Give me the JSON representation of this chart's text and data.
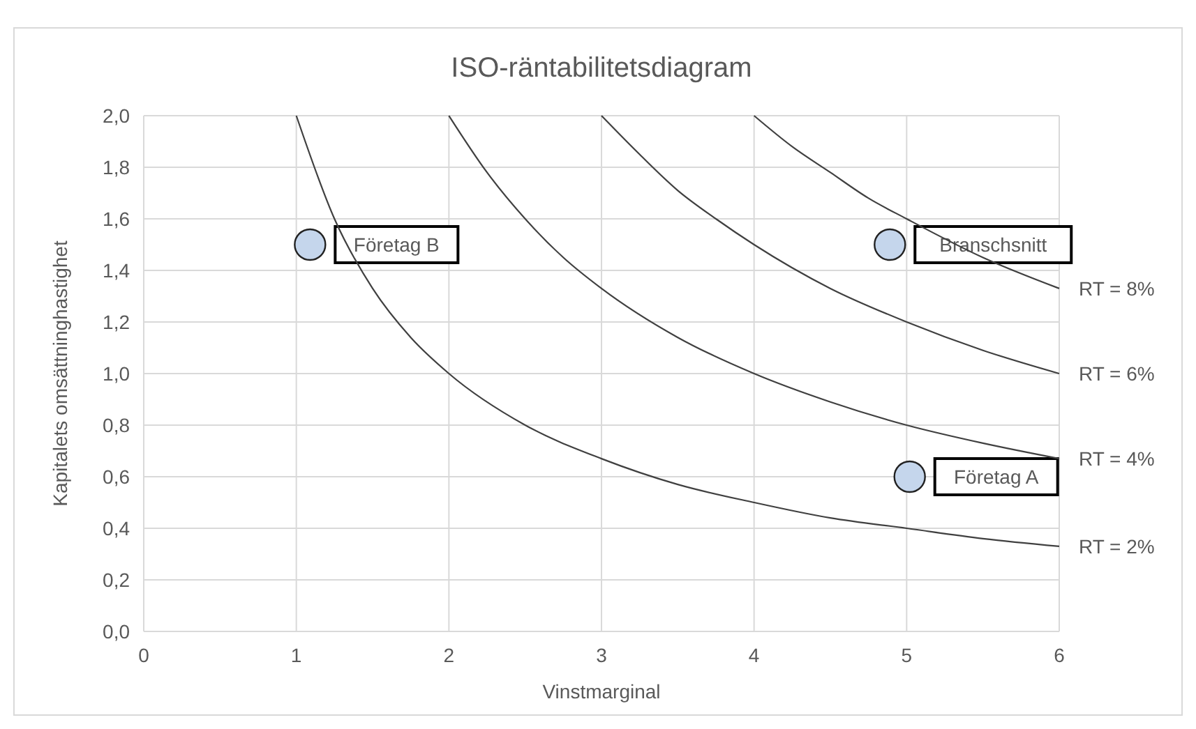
{
  "chart_data": {
    "type": "line",
    "title": "ISO-räntabilitetsdiagram",
    "xlabel": "Vinstmarginal",
    "ylabel": "Kapitalets omsättninghastighet",
    "xlim": [
      0,
      6
    ],
    "ylim": [
      0,
      2
    ],
    "xticks": [
      0,
      1,
      2,
      3,
      4,
      5,
      6
    ],
    "yticks": [
      {
        "value": 0,
        "label": "0,0"
      },
      {
        "value": 0.2,
        "label": "0,2"
      },
      {
        "value": 0.4,
        "label": "0,4"
      },
      {
        "value": 0.6,
        "label": "0,6"
      },
      {
        "value": 0.8,
        "label": "0,8"
      },
      {
        "value": 1,
        "label": "1,0"
      },
      {
        "value": 1.2,
        "label": "1,2"
      },
      {
        "value": 1.4,
        "label": "1,4"
      },
      {
        "value": 1.6,
        "label": "1,6"
      },
      {
        "value": 1.8,
        "label": "1,8"
      },
      {
        "value": 2,
        "label": "2,0"
      }
    ],
    "grid": true,
    "series": [
      {
        "name": "RT = 2%",
        "color": "#404040",
        "x": [
          1,
          1.25,
          1.5,
          1.75,
          2,
          2.5,
          3,
          3.5,
          4,
          4.5,
          5,
          5.5,
          6
        ],
        "values": [
          2,
          1.6,
          1.33,
          1.14,
          1,
          0.8,
          0.67,
          0.57,
          0.5,
          0.44,
          0.4,
          0.36,
          0.33
        ]
      },
      {
        "name": "RT = 4%",
        "color": "#404040",
        "x": [
          2,
          2.25,
          2.5,
          2.75,
          3,
          3.5,
          4,
          4.5,
          5,
          5.5,
          6
        ],
        "values": [
          2,
          1.78,
          1.6,
          1.45,
          1.33,
          1.14,
          1,
          0.89,
          0.8,
          0.73,
          0.67
        ]
      },
      {
        "name": "RT = 6%",
        "color": "#404040",
        "x": [
          3,
          3.25,
          3.5,
          3.75,
          4,
          4.5,
          5,
          5.5,
          6
        ],
        "values": [
          2,
          1.85,
          1.71,
          1.6,
          1.5,
          1.33,
          1.2,
          1.09,
          1
        ]
      },
      {
        "name": "RT = 8%",
        "color": "#404040",
        "x": [
          4,
          4.25,
          4.5,
          4.75,
          5,
          5.5,
          6
        ],
        "values": [
          2,
          1.88,
          1.78,
          1.68,
          1.6,
          1.45,
          1.33
        ]
      },
      {
        "name": "Företag B",
        "type": "scatter",
        "color": "#c5d6ec",
        "marker": "circle",
        "x": [
          1.09
        ],
        "values": [
          1.5
        ]
      },
      {
        "name": "Branschsnitt",
        "type": "scatter",
        "color": "#c5d6ec",
        "marker": "circle",
        "x": [
          4.89
        ],
        "values": [
          1.5
        ]
      },
      {
        "name": "Företag A",
        "type": "scatter",
        "color": "#c5d6ec",
        "marker": "circle",
        "x": [
          5.02
        ],
        "values": [
          0.6
        ]
      }
    ]
  }
}
